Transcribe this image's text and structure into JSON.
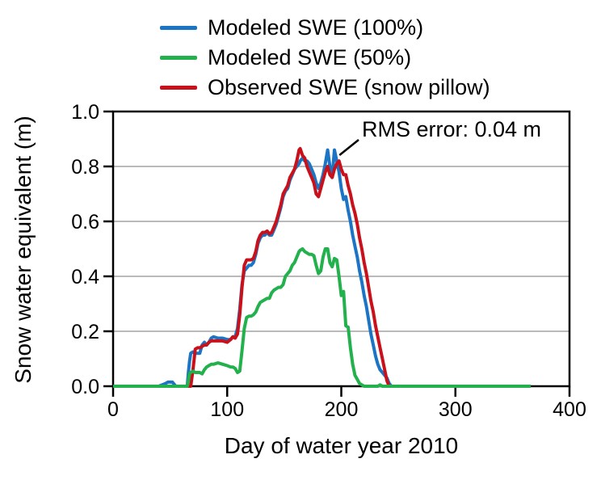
{
  "chart_data": {
    "type": "line",
    "title": "",
    "xlabel": "Day of water year 2010",
    "ylabel": "Snow water equivalent (m)",
    "xlim": [
      0,
      400
    ],
    "ylim": [
      0.0,
      1.0
    ],
    "xtick_values": [
      0,
      100,
      200,
      300,
      400
    ],
    "xtick_labels": [
      "0",
      "100",
      "200",
      "300",
      "400"
    ],
    "ytick_values": [
      0.0,
      0.2,
      0.4,
      0.6,
      0.8,
      1.0
    ],
    "ytick_labels": [
      "0.0",
      "0.2",
      "0.4",
      "0.6",
      "0.8",
      "1.0"
    ],
    "grid": "horizontal-only",
    "grid_color": "#A3A3A3",
    "axis_color": "#000000",
    "legend_position": "above-plot-top-left",
    "annotation": {
      "text": "RMS error: 0.04 m",
      "points_to": {
        "day": 197,
        "swe": 0.85
      }
    },
    "x": [
      0,
      20,
      40,
      46,
      48,
      52,
      55,
      65,
      66,
      67,
      68,
      70,
      72,
      74,
      76,
      78,
      80,
      82,
      84,
      86,
      88,
      92,
      96,
      100,
      103,
      105,
      107,
      109,
      111,
      113,
      115,
      117,
      119,
      121,
      123,
      125,
      127,
      129,
      131,
      133,
      135,
      137,
      139,
      141,
      143,
      145,
      147,
      149,
      151,
      153,
      155,
      157,
      159,
      161,
      163,
      164,
      166,
      168,
      170,
      172,
      174,
      176,
      178,
      180,
      182,
      184,
      186,
      188,
      190,
      192,
      194,
      196,
      198,
      200,
      202,
      204,
      206,
      208,
      210,
      212,
      214,
      216,
      218,
      220,
      222,
      224,
      226,
      228,
      230,
      232,
      234,
      236,
      238,
      240,
      242,
      244,
      250,
      300,
      366
    ],
    "series": [
      {
        "name": "Modeled SWE (100%)",
        "color": "#1B75C4",
        "values": [
          0,
          0,
          0,
          0.01,
          0.015,
          0.015,
          0,
          0,
          0.05,
          0.09,
          0.12,
          0.125,
          0.12,
          0.12,
          0.12,
          0.15,
          0.16,
          0.15,
          0.16,
          0.175,
          0.18,
          0.175,
          0.175,
          0.17,
          0.17,
          0.18,
          0.18,
          0.21,
          0.28,
          0.37,
          0.42,
          0.43,
          0.44,
          0.44,
          0.45,
          0.48,
          0.52,
          0.54,
          0.55,
          0.55,
          0.56,
          0.55,
          0.55,
          0.57,
          0.59,
          0.62,
          0.65,
          0.69,
          0.71,
          0.72,
          0.75,
          0.77,
          0.79,
          0.8,
          0.81,
          0.82,
          0.83,
          0.82,
          0.82,
          0.81,
          0.79,
          0.77,
          0.74,
          0.72,
          0.74,
          0.77,
          0.81,
          0.86,
          0.8,
          0.76,
          0.86,
          0.82,
          0.78,
          0.72,
          0.68,
          0.69,
          0.64,
          0.6,
          0.55,
          0.51,
          0.47,
          0.42,
          0.38,
          0.33,
          0.29,
          0.24,
          0.19,
          0.15,
          0.11,
          0.08,
          0.06,
          0.05,
          0.04,
          0.03,
          0.01,
          0,
          0,
          0,
          0
        ]
      },
      {
        "name": "Modeled SWE (50%)",
        "color": "#22B14C",
        "values": [
          0,
          0,
          0,
          0,
          0,
          0,
          0,
          0,
          0.02,
          0.045,
          0.05,
          0.055,
          0.05,
          0.05,
          0.05,
          0.045,
          0.06,
          0.07,
          0.075,
          0.08,
          0.08,
          0.085,
          0.08,
          0.075,
          0.07,
          0.07,
          0.065,
          0.05,
          0.055,
          0.13,
          0.21,
          0.25,
          0.255,
          0.255,
          0.26,
          0.27,
          0.29,
          0.305,
          0.31,
          0.315,
          0.32,
          0.32,
          0.34,
          0.35,
          0.355,
          0.36,
          0.36,
          0.37,
          0.4,
          0.41,
          0.42,
          0.44,
          0.45,
          0.47,
          0.49,
          0.495,
          0.5,
          0.49,
          0.485,
          0.48,
          0.48,
          0.475,
          0.44,
          0.41,
          0.42,
          0.47,
          0.5,
          0.5,
          0.45,
          0.435,
          0.465,
          0.46,
          0.4,
          0.33,
          0.345,
          0.22,
          0.215,
          0.14,
          0.08,
          0.04,
          0.025,
          0.01,
          0.005,
          0,
          0,
          0,
          0,
          0,
          0,
          0,
          0.005,
          0,
          0,
          0,
          0,
          0,
          0,
          0,
          0
        ]
      },
      {
        "name": "Observed SWE (snow pillow)",
        "color": "#C9111B",
        "values": [
          0,
          0,
          0,
          0,
          0,
          0,
          0,
          0,
          0,
          0,
          0,
          0.06,
          0.135,
          0.14,
          0.14,
          0.145,
          0.15,
          0.15,
          0.16,
          0.165,
          0.165,
          0.165,
          0.165,
          0.16,
          0.17,
          0.18,
          0.175,
          0.19,
          0.26,
          0.36,
          0.44,
          0.46,
          0.46,
          0.46,
          0.465,
          0.49,
          0.53,
          0.55,
          0.56,
          0.56,
          0.565,
          0.555,
          0.56,
          0.58,
          0.6,
          0.63,
          0.66,
          0.7,
          0.715,
          0.73,
          0.76,
          0.775,
          0.79,
          0.82,
          0.86,
          0.865,
          0.84,
          0.83,
          0.8,
          0.78,
          0.76,
          0.74,
          0.7,
          0.69,
          0.72,
          0.75,
          0.78,
          0.8,
          0.77,
          0.76,
          0.79,
          0.81,
          0.82,
          0.79,
          0.77,
          0.77,
          0.73,
          0.7,
          0.66,
          0.63,
          0.59,
          0.54,
          0.5,
          0.45,
          0.41,
          0.36,
          0.31,
          0.27,
          0.22,
          0.18,
          0.14,
          0.1,
          0.06,
          0.02,
          0,
          0,
          0,
          0,
          0
        ]
      }
    ],
    "draw_order": [
      0,
      2,
      1
    ]
  }
}
